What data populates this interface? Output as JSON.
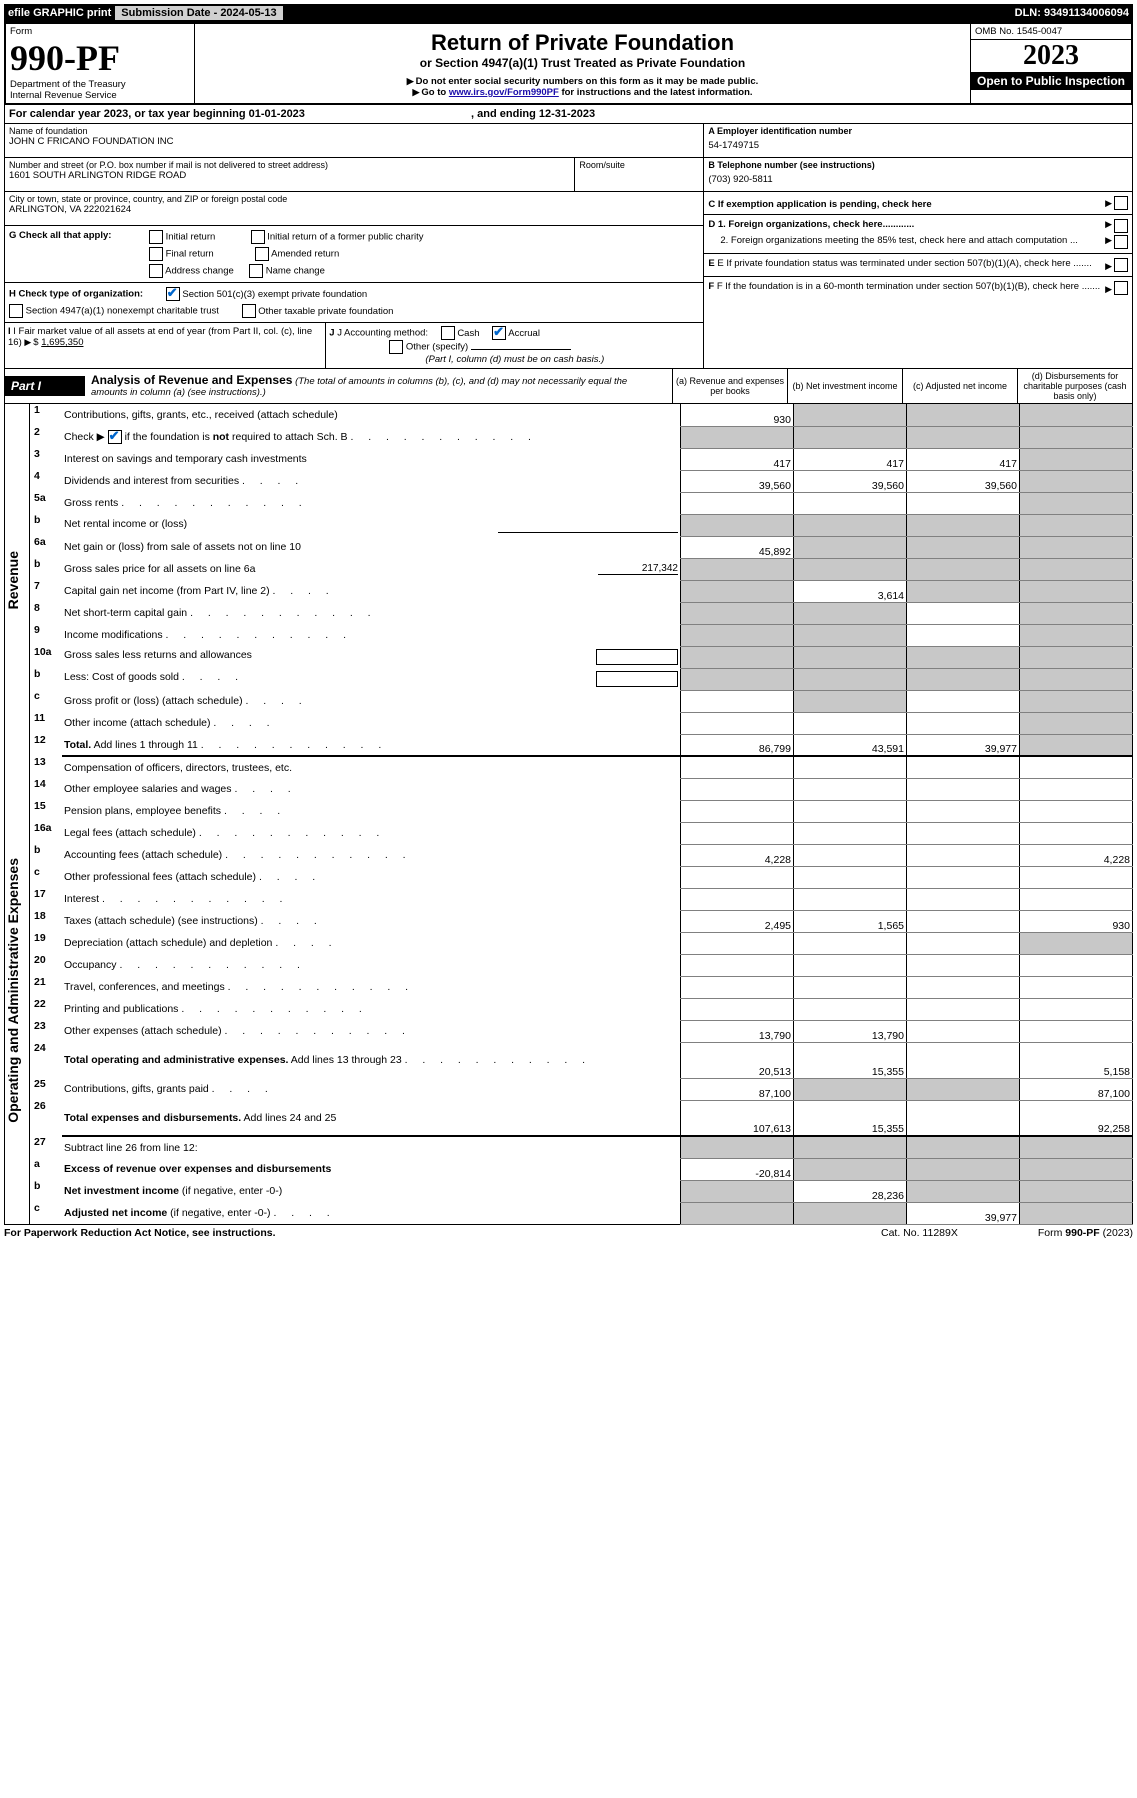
{
  "topbar": {
    "efile": "efile GRAPHIC print",
    "sub_label": "Submission Date - 2024-05-13",
    "dln": "DLN: 93491134006094"
  },
  "header": {
    "form_label": "Form",
    "form_no": "990-PF",
    "dept": "Department of the Treasury",
    "irs": "Internal Revenue Service",
    "title": "Return of Private Foundation",
    "subtitle": "or Section 4947(a)(1) Trust Treated as Private Foundation",
    "note1": "Do not enter social security numbers on this form as it may be made public.",
    "note2_pre": "Go to ",
    "note2_link": "www.irs.gov/Form990PF",
    "note2_post": " for instructions and the latest information.",
    "omb": "OMB No. 1545-0047",
    "year": "2023",
    "open": "Open to Public Inspection"
  },
  "cal": {
    "text": "For calendar year 2023, or tax year beginning 01-01-2023",
    "mid": ", and ending 12-31-2023"
  },
  "info": {
    "name_label": "Name of foundation",
    "name": "JOHN C FRICANO FOUNDATION INC",
    "addr_label": "Number and street (or P.O. box number if mail is not delivered to street address)",
    "addr": "1601 SOUTH ARLINGTON RIDGE ROAD",
    "room_label": "Room/suite",
    "city_label": "City or town, state or province, country, and ZIP or foreign postal code",
    "city": "ARLINGTON, VA  222021624",
    "a_label": "A Employer identification number",
    "a_val": "54-1749715",
    "b_label": "B Telephone number (see instructions)",
    "b_val": "(703) 920-5811",
    "c_label": "C If exemption application is pending, check here",
    "d1": "D 1. Foreign organizations, check here............",
    "d2": "2. Foreign organizations meeting the 85% test, check here and attach computation ...",
    "e": "E  If private foundation status was terminated under section 507(b)(1)(A), check here .......",
    "f": "F  If the foundation is in a 60-month termination under section 507(b)(1)(B), check here .......",
    "g_label": "G Check all that apply:",
    "g_opts": [
      "Initial return",
      "Final return",
      "Address change",
      "Initial return of a former public charity",
      "Amended return",
      "Name change"
    ],
    "h_label": "H Check type of organization:",
    "h_opt1": "Section 501(c)(3) exempt private foundation",
    "h_opt2": "Section 4947(a)(1) nonexempt charitable trust",
    "h_opt3": "Other taxable private foundation",
    "i_label": "I Fair market value of all assets at end of year (from Part II, col. (c), line 16)",
    "i_val": "1,695,350",
    "j_label": "J Accounting method:",
    "j_cash": "Cash",
    "j_accrual": "Accrual",
    "j_other": "Other (specify)",
    "j_note": "(Part I, column (d) must be on cash basis.)"
  },
  "part1": {
    "label": "Part I",
    "title": "Analysis of Revenue and Expenses",
    "title_note": "(The total of amounts in columns (b), (c), and (d) may not necessarily equal the amounts in column (a) (see instructions).)",
    "col_a": "(a)  Revenue and expenses per books",
    "col_b": "(b)  Net investment income",
    "col_c": "(c)  Adjusted net income",
    "col_d": "(d)  Disbursements for charitable purposes (cash basis only)"
  },
  "vlabels": {
    "revenue": "Revenue",
    "expenses": "Operating and Administrative Expenses"
  },
  "rows": [
    {
      "n": "1",
      "l": "Contributions, gifts, grants, etc., received (attach schedule)",
      "a": "930",
      "b": "",
      "c": "",
      "d": "",
      "b_grey": true,
      "c_grey": true,
      "d_grey": true
    },
    {
      "n": "2",
      "l": "Check ▶ [CHECK] if the foundation is <b>not</b> required to attach Sch. B",
      "has_check": true,
      "dots": true,
      "all_grey": true
    },
    {
      "n": "3",
      "l": "Interest on savings and temporary cash investments",
      "a": "417",
      "b": "417",
      "c": "417",
      "d": "",
      "d_grey": true
    },
    {
      "n": "4",
      "l": "Dividends and interest from securities",
      "dots_short": true,
      "a": "39,560",
      "b": "39,560",
      "c": "39,560",
      "d": "",
      "d_grey": true
    },
    {
      "n": "5a",
      "l": "Gross rents",
      "dots": true,
      "d_grey": true
    },
    {
      "n": "b",
      "l": "Net rental income or (loss)",
      "underline_after": true,
      "all_grey": true
    },
    {
      "n": "6a",
      "l": "Net gain or (loss) from sale of assets not on line 10",
      "a": "45,892",
      "b_grey": true,
      "c_grey": true,
      "d_grey": true
    },
    {
      "n": "b",
      "l": "Gross sales price for all assets on line 6a",
      "inline_val": "217,342",
      "all_grey": true
    },
    {
      "n": "7",
      "l": "Capital gain net income (from Part IV, line 2)",
      "dots_short": true,
      "a_grey": true,
      "b": "3,614",
      "c_grey": true,
      "d_grey": true
    },
    {
      "n": "8",
      "l": "Net short-term capital gain",
      "dots": true,
      "a_grey": true,
      "b_grey": true,
      "d_grey": true
    },
    {
      "n": "9",
      "l": "Income modifications",
      "dots": true,
      "a_grey": true,
      "b_grey": true,
      "d_grey": true
    },
    {
      "n": "10a",
      "l": "Gross sales less returns and allowances",
      "box_after": true,
      "all_grey": true
    },
    {
      "n": "b",
      "l": "Less: Cost of goods sold",
      "dots_short": true,
      "box_after": true,
      "all_grey": true
    },
    {
      "n": "c",
      "l": "Gross profit or (loss) (attach schedule)",
      "dots_short": true,
      "a_grey": false,
      "b_grey": true,
      "d_grey": true
    },
    {
      "n": "11",
      "l": "Other income (attach schedule)",
      "dots_short": true,
      "d_grey": true
    },
    {
      "n": "12",
      "l": "<b>Total.</b> Add lines 1 through 11",
      "dots": true,
      "a": "86,799",
      "b": "43,591",
      "c": "39,977",
      "d_grey": true,
      "thick_bottom": true
    },
    {
      "n": "13",
      "l": "Compensation of officers, directors, trustees, etc."
    },
    {
      "n": "14",
      "l": "Other employee salaries and wages",
      "dots_short": true
    },
    {
      "n": "15",
      "l": "Pension plans, employee benefits",
      "dots_short": true
    },
    {
      "n": "16a",
      "l": "Legal fees (attach schedule)",
      "dots": true
    },
    {
      "n": "b",
      "l": "Accounting fees (attach schedule)",
      "dots": true,
      "a": "4,228",
      "d": "4,228"
    },
    {
      "n": "c",
      "l": "Other professional fees (attach schedule)",
      "dots_short": true
    },
    {
      "n": "17",
      "l": "Interest",
      "dots": true
    },
    {
      "n": "18",
      "l": "Taxes (attach schedule) (see instructions)",
      "dots_short": true,
      "a": "2,495",
      "b": "1,565",
      "d": "930"
    },
    {
      "n": "19",
      "l": "Depreciation (attach schedule) and depletion",
      "dots_short": true,
      "d_grey": true
    },
    {
      "n": "20",
      "l": "Occupancy",
      "dots": true
    },
    {
      "n": "21",
      "l": "Travel, conferences, and meetings",
      "dots": true
    },
    {
      "n": "22",
      "l": "Printing and publications",
      "dots": true
    },
    {
      "n": "23",
      "l": "Other expenses (attach schedule)",
      "dots": true,
      "a": "13,790",
      "b": "13,790"
    },
    {
      "n": "24",
      "l": "<b>Total operating and administrative expenses.</b> Add lines 13 through 23",
      "dots": true,
      "a": "20,513",
      "b": "15,355",
      "d": "5,158",
      "tall": true
    },
    {
      "n": "25",
      "l": "Contributions, gifts, grants paid",
      "dots_short": true,
      "a": "87,100",
      "b_grey": true,
      "c_grey": true,
      "d": "87,100"
    },
    {
      "n": "26",
      "l": "<b>Total expenses and disbursements.</b> Add lines 24 and 25",
      "a": "107,613",
      "b": "15,355",
      "d": "92,258",
      "tall": true,
      "thick_bottom": true
    },
    {
      "n": "27",
      "l": "Subtract line 26 from line 12:",
      "all_grey": true
    },
    {
      "n": "a",
      "l": "<b>Excess of revenue over expenses and disbursements</b>",
      "a": "-20,814",
      "b_grey": true,
      "c_grey": true,
      "d_grey": true
    },
    {
      "n": "b",
      "l": "<b>Net investment income</b> (if negative, enter -0-)",
      "a_grey": true,
      "b": "28,236",
      "c_grey": true,
      "d_grey": true
    },
    {
      "n": "c",
      "l": "<b>Adjusted net income</b> (if negative, enter -0-)",
      "dots_short": true,
      "a_grey": true,
      "b_grey": true,
      "c": "39,977",
      "d_grey": true
    }
  ],
  "footer": {
    "left": "For Paperwork Reduction Act Notice, see instructions.",
    "mid": "Cat. No. 11289X",
    "right": "Form 990-PF (2023)"
  }
}
